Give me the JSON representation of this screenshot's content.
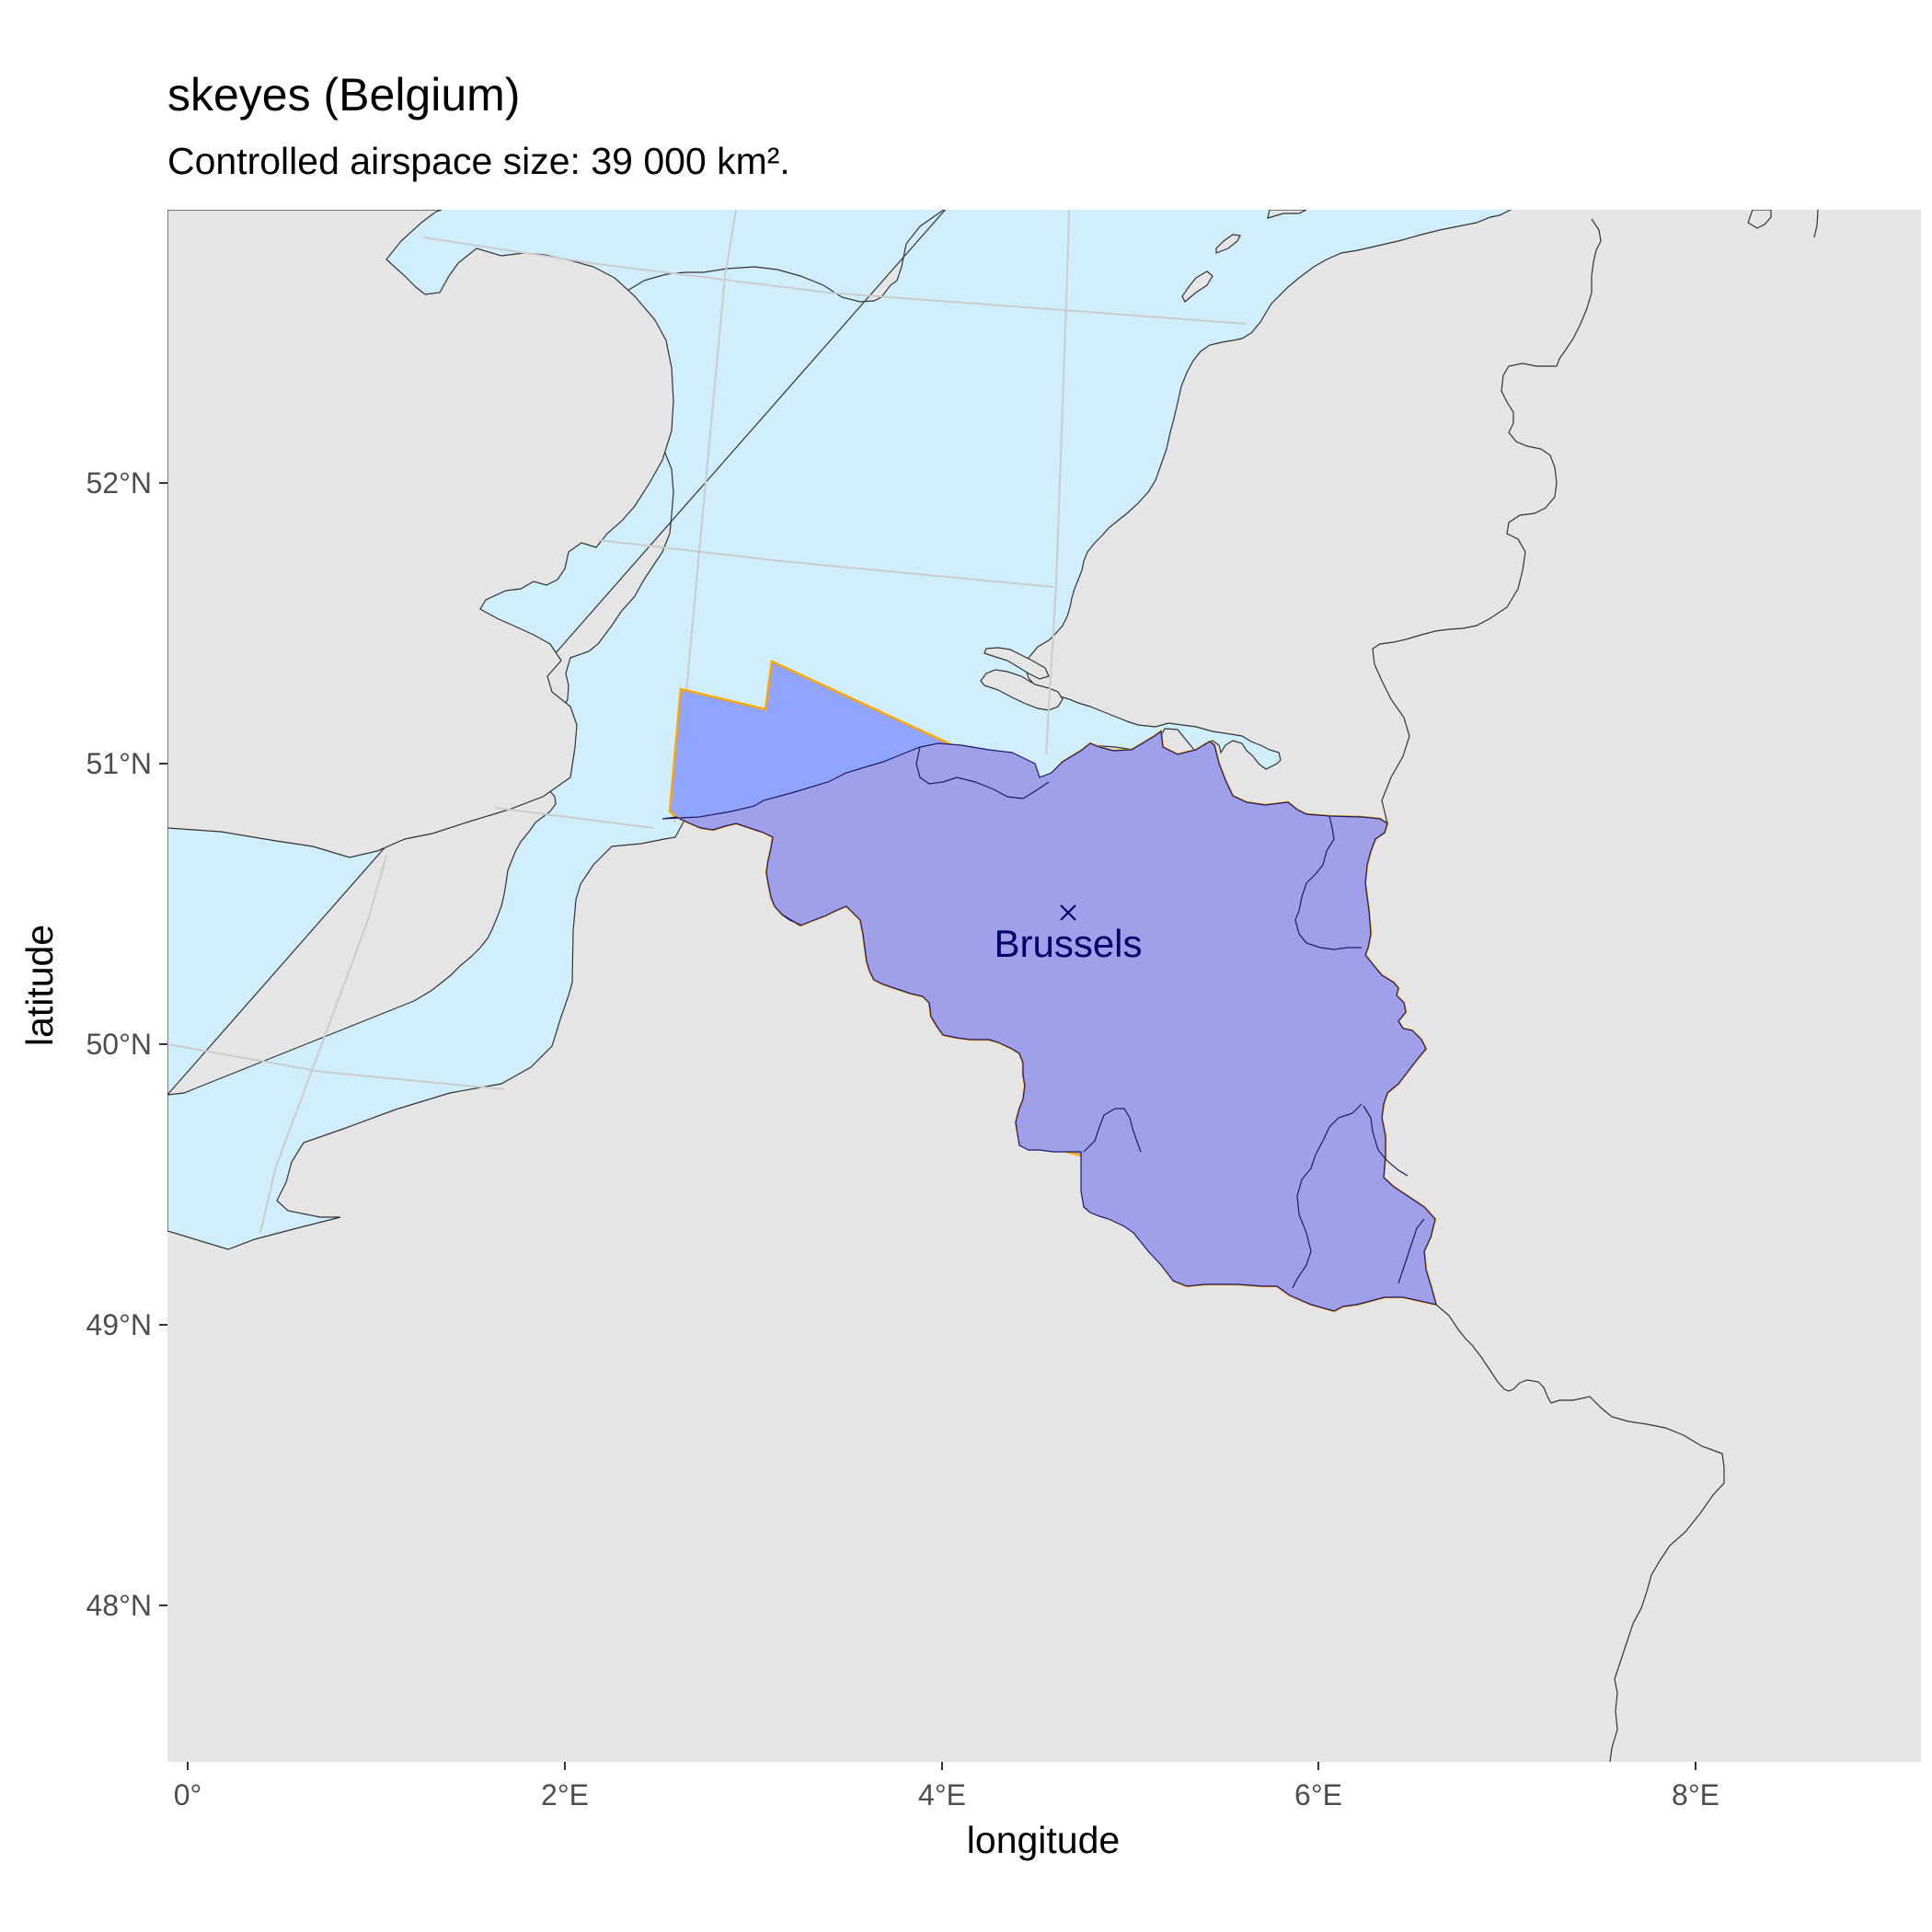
{
  "title": "skeyes (Belgium)",
  "subtitle": "Controlled airspace size: 39 000 km².",
  "map": {
    "xlabel": "longitude",
    "ylabel": "latitude",
    "x_ticks": [
      {
        "value": 0,
        "label": "0°"
      },
      {
        "value": 2,
        "label": "2°E"
      },
      {
        "value": 4,
        "label": "4°E"
      },
      {
        "value": 6,
        "label": "6°E"
      },
      {
        "value": 8,
        "label": "8°E"
      }
    ],
    "y_ticks": [
      {
        "value": 52,
        "label": "52°N"
      },
      {
        "value": 51,
        "label": "51°N"
      },
      {
        "value": 50,
        "label": "50°N"
      },
      {
        "value": 49,
        "label": "49°N"
      },
      {
        "value": 48,
        "label": "48°N"
      }
    ],
    "xlim": [
      -0.1,
      9.2
    ],
    "ylim": [
      47.45,
      52.97
    ],
    "colors": {
      "panel_background": "#e5e5e5",
      "sea": "#d0eefc",
      "airspace_fill": "#8fa5ff",
      "country_overlay": "#a09fea",
      "airspace_outline": "#ffa500",
      "coastline": "#333333",
      "graticule": "#cccccc",
      "city_label": "#00006b"
    },
    "city": {
      "name": "Brussels",
      "lon": 4.67,
      "lat": 50.47,
      "marker": "x-icon"
    }
  }
}
